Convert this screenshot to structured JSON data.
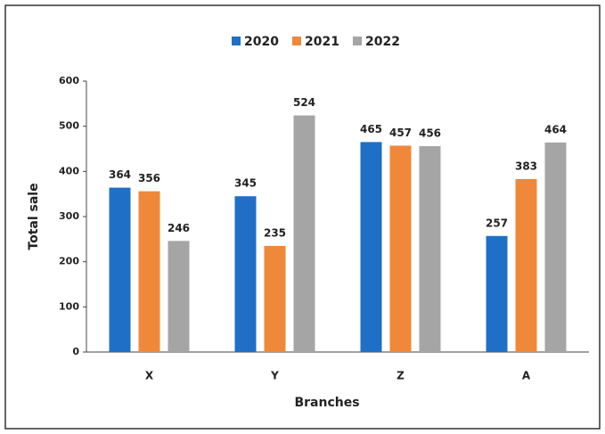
{
  "chart_data": {
    "type": "bar",
    "categories": [
      "X",
      "Y",
      "Z",
      "A"
    ],
    "series": [
      {
        "name": "2020",
        "color": "#1f6fc6",
        "values": [
          364,
          345,
          465,
          257
        ]
      },
      {
        "name": "2021",
        "color": "#f0883a",
        "values": [
          356,
          235,
          457,
          383
        ]
      },
      {
        "name": "2022",
        "color": "#a5a5a5",
        "values": [
          246,
          524,
          456,
          464
        ]
      }
    ],
    "xlabel": "Branches",
    "ylabel": "Total sale",
    "ylim": [
      0,
      600
    ],
    "yticks": [
      0,
      100,
      200,
      300,
      400,
      500,
      600
    ],
    "grid": false,
    "legend": "top"
  }
}
